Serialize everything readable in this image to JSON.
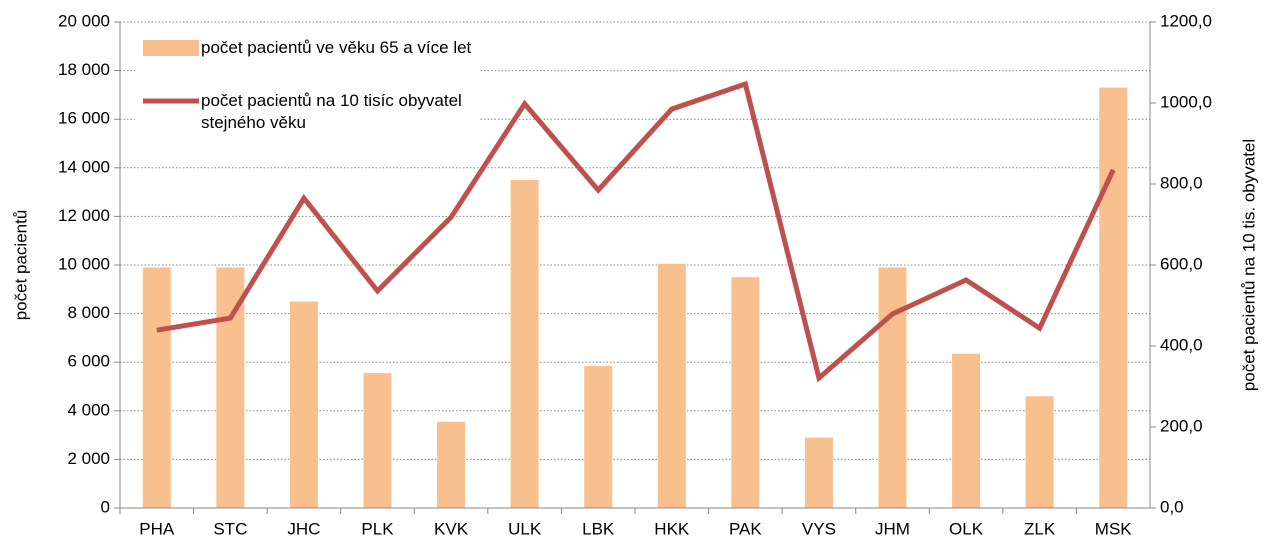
{
  "chart_data": {
    "type": "bar_line",
    "categories": [
      "PHA",
      "STC",
      "JHC",
      "PLK",
      "KVK",
      "ULK",
      "LBK",
      "HKK",
      "PAK",
      "VYS",
      "JHM",
      "OLK",
      "ZLK",
      "MSK"
    ],
    "series": [
      {
        "name": "počet pacientů ve věku 65 a více let",
        "type": "bar",
        "color": "#f9c08f",
        "values": [
          9900,
          9900,
          8500,
          5550,
          3550,
          13500,
          5850,
          10050,
          9500,
          2900,
          9900,
          6350,
          4600,
          17300
        ]
      },
      {
        "name": "počet pacientů na 10 tisíc obyvatel stejného věku",
        "type": "line",
        "color": "#c0504d",
        "axis": "y2",
        "values": [
          439,
          469,
          765,
          536,
          718,
          998,
          785,
          985,
          1047,
          321,
          479,
          563,
          444,
          835
        ]
      }
    ],
    "ylabel": "počet pacientů",
    "y2label": "počet pacientů na 10 tis. obyvatel",
    "ylim": [
      0,
      20000
    ],
    "yticks": [
      0,
      {
        "value": 2000,
        "label": "2 000"
      },
      {
        "value": 4000,
        "label": "4 000"
      },
      {
        "value": 6000,
        "label": "6 000"
      },
      {
        "value": 8000,
        "label": "8 000"
      },
      {
        "value": 10000,
        "label": "10 000"
      },
      {
        "value": 12000,
        "label": "12 000"
      },
      {
        "value": 14000,
        "label": "14 000"
      },
      {
        "value": 16000,
        "label": "16 000"
      },
      {
        "value": 18000,
        "label": "18 000"
      },
      {
        "value": 20000,
        "label": "20 000"
      }
    ],
    "y2lim": [
      0,
      1200
    ],
    "y2ticks": [
      {
        "value": 0,
        "label": "0,0"
      },
      {
        "value": 200,
        "label": "200,0"
      },
      {
        "value": 400,
        "label": "400,0"
      },
      {
        "value": 600,
        "label": "600,0"
      },
      {
        "value": 800,
        "label": "800,0"
      },
      {
        "value": 1000,
        "label": "1000,0"
      },
      {
        "value": 1200,
        "label": "1200,0"
      }
    ],
    "grid": true,
    "legend": "upper left"
  }
}
